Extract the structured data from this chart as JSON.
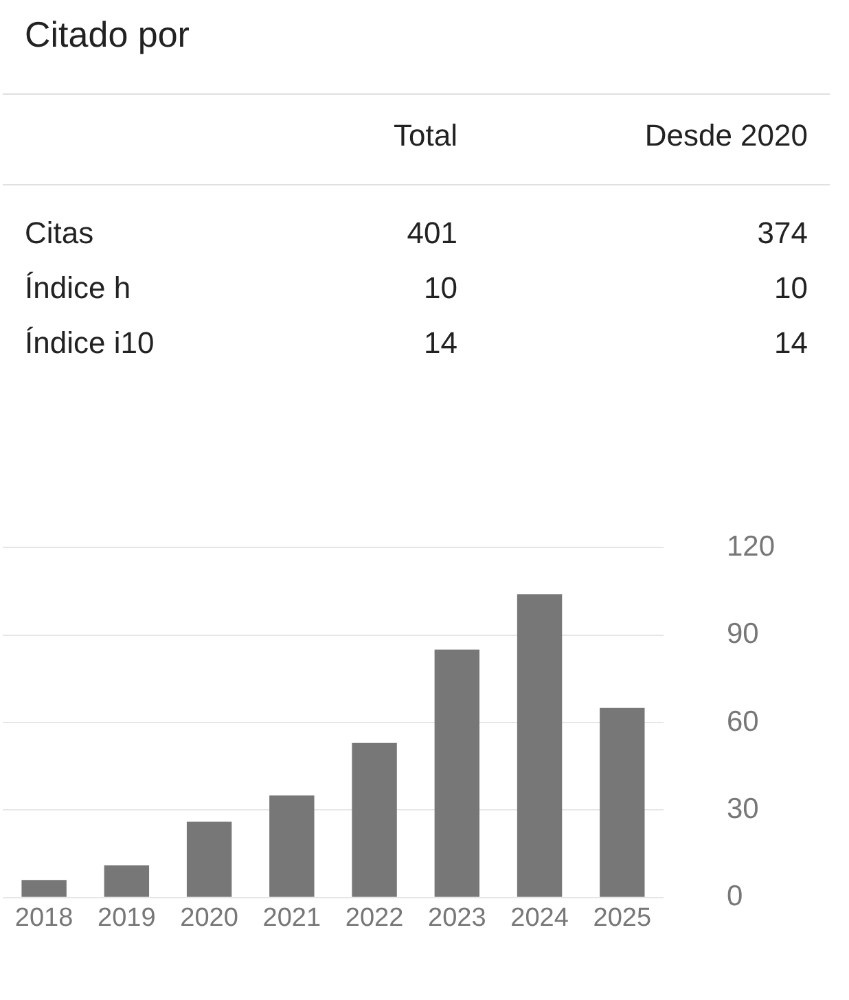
{
  "chart_data": {
    "type": "bar",
    "title": "Citado por",
    "annotations": [
      "Total",
      "Desde 2020",
      "Citas",
      "401",
      "374",
      "Índice h",
      "10",
      "10",
      "Índice i10",
      "14",
      "14"
    ],
    "categories": [
      "2018",
      "2019",
      "2020",
      "2021",
      "2022",
      "2023",
      "2024",
      "2025"
    ],
    "values": [
      6,
      11,
      26,
      35,
      53,
      85,
      104,
      65
    ],
    "color": "#777777",
    "ylim": [
      0,
      120
    ],
    "yticks": [
      0,
      30,
      60,
      90,
      120
    ],
    "grid": "y"
  }
}
